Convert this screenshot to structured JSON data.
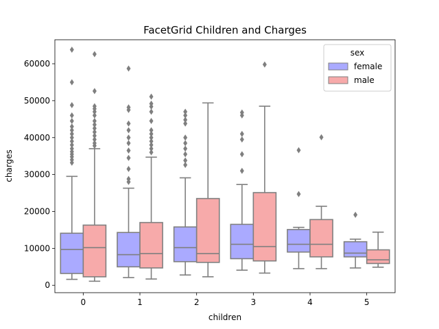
{
  "chart_data": {
    "type": "box",
    "title": "FacetGrid Children and Charges",
    "xlabel": "children",
    "ylabel": "charges",
    "categories": [
      "0",
      "1",
      "2",
      "3",
      "4",
      "5"
    ],
    "yticks": [
      0,
      10000,
      20000,
      30000,
      40000,
      50000,
      60000
    ],
    "ytick_labels": [
      "0",
      "10000",
      "20000",
      "30000",
      "40000",
      "50000",
      "60000"
    ],
    "ylim": [
      -2000,
      66500
    ],
    "grid": false,
    "legend": {
      "title": "sex",
      "position": "top-right"
    },
    "series": [
      {
        "name": "female",
        "color": "#aaaaff",
        "boxes": [
          {
            "whislo": 1600,
            "q1": 3200,
            "med": 9700,
            "q3": 14100,
            "whishi": 29500,
            "fliers": [
              33200,
              34000,
              34800,
              35500,
              36200,
              37000,
              38000,
              39000,
              40000,
              41000,
              42000,
              43000,
              44500,
              46000,
              48800,
              55000,
              63800
            ]
          },
          {
            "whislo": 2100,
            "q1": 5000,
            "med": 8300,
            "q3": 14300,
            "whishi": 26300,
            "fliers": [
              28000,
              28800,
              31500,
              34500,
              36500,
              38500,
              40000,
              42000,
              43800,
              47500,
              48200,
              58700
            ]
          },
          {
            "whislo": 2800,
            "q1": 6400,
            "med": 10200,
            "q3": 15800,
            "whishi": 29100,
            "fliers": [
              32600,
              33800,
              35500,
              37000,
              38500,
              40000,
              43800,
              44800,
              46000,
              47000
            ]
          },
          {
            "whislo": 4100,
            "q1": 7200,
            "med": 11100,
            "q3": 16500,
            "whishi": 27300,
            "fliers": [
              31000,
              35500,
              39500,
              41000,
              46000,
              46800
            ]
          },
          {
            "whislo": 4500,
            "q1": 9000,
            "med": 11100,
            "q3": 15100,
            "whishi": 15700,
            "fliers": [
              24700,
              36600
            ]
          },
          {
            "whislo": 4700,
            "q1": 7700,
            "med": 8700,
            "q3": 11800,
            "whishi": 12500,
            "fliers": [
              19100
            ]
          }
        ]
      },
      {
        "name": "male",
        "color": "#f7aaaa",
        "boxes": [
          {
            "whislo": 1100,
            "q1": 2300,
            "med": 10200,
            "q3": 16300,
            "whishi": 37000,
            "fliers": [
              37800,
              38500,
              39500,
              40500,
              41500,
              42500,
              43500,
              44500,
              46000,
              47000,
              47800,
              48500,
              52600,
              62600
            ]
          },
          {
            "whislo": 1700,
            "q1": 4700,
            "med": 8600,
            "q3": 17000,
            "whishi": 34700,
            "fliers": [
              36000,
              37000,
              38000,
              39000,
              40000,
              41000,
              42000,
              44500,
              47000,
              48400,
              49200,
              51100
            ]
          },
          {
            "whislo": 2300,
            "q1": 6200,
            "med": 8600,
            "q3": 23500,
            "whishi": 49400,
            "fliers": []
          },
          {
            "whislo": 3300,
            "q1": 6600,
            "med": 10500,
            "q3": 25100,
            "whishi": 48500,
            "fliers": [
              59800
            ]
          },
          {
            "whislo": 4500,
            "q1": 7700,
            "med": 11100,
            "q3": 17800,
            "whishi": 21400,
            "fliers": [
              40100
            ]
          },
          {
            "whislo": 4900,
            "q1": 5900,
            "med": 6900,
            "q3": 9600,
            "whishi": 14400,
            "fliers": []
          }
        ]
      }
    ]
  }
}
